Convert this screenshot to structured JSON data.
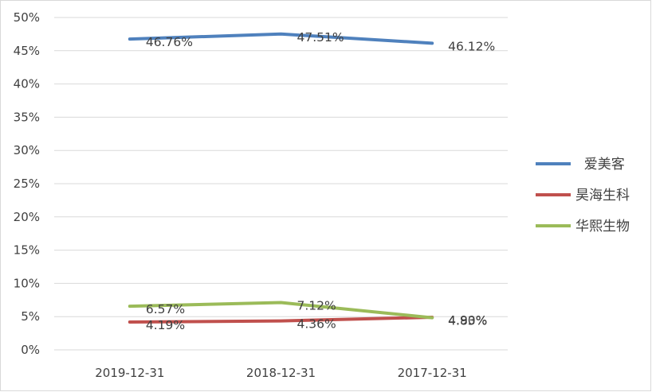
{
  "chart_data": {
    "type": "line",
    "title": "",
    "xlabel": "",
    "ylabel": "",
    "categories": [
      "2019-12-31",
      "2018-12-31",
      "2017-12-31"
    ],
    "ylim": [
      0,
      50
    ],
    "yticks": [
      "0%",
      "5%",
      "10%",
      "15%",
      "20%",
      "25%",
      "30%",
      "35%",
      "40%",
      "45%",
      "50%"
    ],
    "grid": true,
    "legend_position": "right",
    "series": [
      {
        "name": "爱美客",
        "legend_label": "  爱美客",
        "color": "#4f81bd",
        "values": [
          46.76,
          47.51,
          46.12
        ],
        "labels": [
          "46.76%",
          "47.51%",
          "46.12%"
        ]
      },
      {
        "name": "昊海生科",
        "legend_label": "昊海生科",
        "color": "#c0504d",
        "values": [
          4.19,
          4.36,
          4.9
        ],
        "labels": [
          "4.19%",
          "4.36%",
          "4.90%"
        ]
      },
      {
        "name": "华熙生物",
        "legend_label": "华熙生物",
        "color": "#9bbb59",
        "values": [
          6.57,
          7.12,
          4.83
        ],
        "labels": [
          "6.57%",
          "7.12%",
          "4.83%"
        ]
      }
    ]
  }
}
